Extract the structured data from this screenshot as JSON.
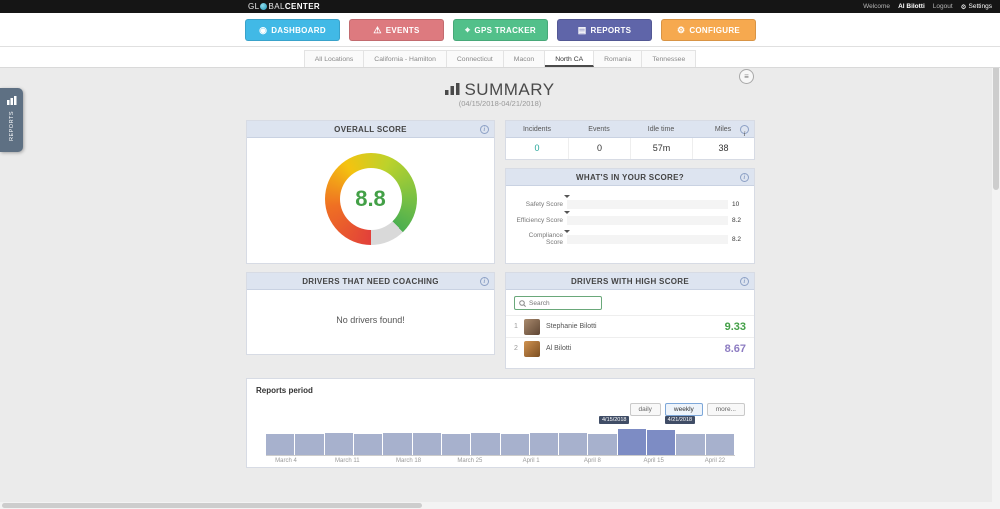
{
  "topbar": {
    "logo_part1": "GL",
    "logo_part2": "BAL",
    "logo_part3": "CENTER",
    "welcome_label": "Welcome",
    "user_name": "Al Bilotti",
    "logout_label": "Logout",
    "settings_label": "Settings",
    "settings_glyph": "⚙"
  },
  "nav": {
    "items": [
      {
        "label": "DASHBOARD",
        "icon": "dashboard-icon",
        "glyph": "◉",
        "color": "#41b9e6"
      },
      {
        "label": "EVENTS",
        "icon": "warning-icon",
        "glyph": "⚠",
        "color": "#dd7a7f"
      },
      {
        "label": "GPS TRACKER",
        "icon": "location-icon",
        "glyph": "⌖",
        "color": "#52c08a"
      },
      {
        "label": "REPORTS",
        "icon": "report-icon",
        "glyph": "▤",
        "color": "#5f65a9"
      },
      {
        "label": "CONFIGURE",
        "icon": "gear-icon",
        "glyph": "⚙",
        "color": "#f6a94f"
      }
    ]
  },
  "tabs": {
    "items": [
      "All Locations",
      "California - Hamilton",
      "Connecticut",
      "Macon",
      "North CA",
      "Romania",
      "Tennessee"
    ],
    "active": "North CA"
  },
  "sidebar_flap": {
    "label": "REPORTS"
  },
  "export_menu": {
    "glyph": "≡"
  },
  "page": {
    "title": "SUMMARY",
    "date_range": "(04/15/2018-04/21/2018)"
  },
  "overall_score": {
    "title": "OVERALL SCORE",
    "value": "8.8",
    "accent_color": "#43a047"
  },
  "stats": {
    "columns": [
      {
        "label": "Incidents",
        "value": "0",
        "color": "#26a69a"
      },
      {
        "label": "Events",
        "value": "0",
        "color": "#333333"
      },
      {
        "label": "Idle time",
        "value": "57m",
        "color": "#333333"
      },
      {
        "label": "Miles",
        "value": "38",
        "color": "#333333"
      }
    ]
  },
  "score_breakdown": {
    "title": "WHAT'S IN YOUR SCORE?",
    "max": 10,
    "bars": [
      {
        "label": "Safety Score",
        "value": 10,
        "display": "10",
        "pct": 100,
        "color": "#2e9fc0"
      },
      {
        "label": "Efficiency Score",
        "value": 8.2,
        "display": "8.2",
        "pct": 82,
        "color": "#2e9e50"
      },
      {
        "label": "Compliance Score",
        "value": 8.2,
        "display": "8.2",
        "pct": 82,
        "color": "#f0a23c"
      }
    ]
  },
  "coaching": {
    "title": "DRIVERS THAT NEED COACHING",
    "empty_message": "No drivers found!"
  },
  "high_score": {
    "title": "DRIVERS WITH HIGH SCORE",
    "search_placeholder": "Search",
    "drivers": [
      {
        "rank": "1",
        "name": "Stephanie Bilotti",
        "score": "9.33",
        "score_color": "#43a047"
      },
      {
        "rank": "2",
        "name": "Al Bilotti",
        "score": "8.67",
        "score_color": "#8d7cc2"
      }
    ]
  },
  "period": {
    "label": "Reports period",
    "buttons": [
      {
        "label": "daily",
        "active": false
      },
      {
        "label": "weekly",
        "active": true
      },
      {
        "label": "more...",
        "active": false
      }
    ],
    "tooltips": [
      "4/15/2018",
      "4/21/2018"
    ]
  },
  "chart_data": {
    "type": "area",
    "title": "Reports period",
    "x_labels": [
      "March 4",
      "March 11",
      "March 18",
      "March 25",
      "April 1",
      "April 8",
      "April 15",
      "April 22"
    ],
    "values": [
      21,
      21,
      22,
      21,
      22,
      22,
      21,
      22,
      21,
      22,
      22,
      21,
      26,
      25,
      21,
      21
    ],
    "highlight_indices": [
      12,
      13
    ],
    "highlight_range": [
      "4/15/2018",
      "4/21/2018"
    ],
    "bar_color": "#a7b1cd",
    "highlight_color": "#7d8cc4"
  }
}
